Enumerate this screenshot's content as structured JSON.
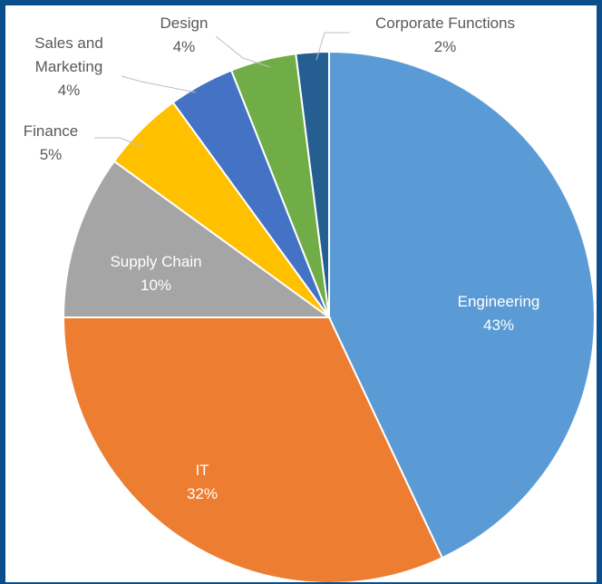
{
  "chart_data": {
    "type": "pie",
    "title": "",
    "slices": [
      {
        "label": "Engineering",
        "value": 43,
        "value_label": "43%",
        "color": "#5b9bd5"
      },
      {
        "label": "IT",
        "value": 32,
        "value_label": "32%",
        "color": "#ed7d31"
      },
      {
        "label": "Supply Chain",
        "value": 10,
        "value_label": "10%",
        "color": "#a5a5a5"
      },
      {
        "label": "Finance",
        "value": 5,
        "value_label": "5%",
        "color": "#ffc000"
      },
      {
        "label": "Sales and Marketing",
        "value": 4,
        "value_label": "4%",
        "color": "#4472c4"
      },
      {
        "label": "Design",
        "value": 4,
        "value_label": "4%",
        "color": "#70ad47"
      },
      {
        "label": "Corporate Functions",
        "value": 2,
        "value_label": "2%",
        "color": "#255e91"
      }
    ],
    "legend": "none"
  }
}
